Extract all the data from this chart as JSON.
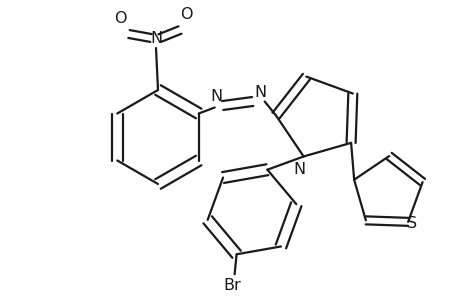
{
  "bg_color": "#ffffff",
  "line_color": "#1a1a1a",
  "line_width": 1.6,
  "font_size": 10.5,
  "fig_width": 4.6,
  "fig_height": 3.0,
  "dpi": 100,
  "xlim": [
    0,
    460
  ],
  "ylim": [
    0,
    300
  ]
}
